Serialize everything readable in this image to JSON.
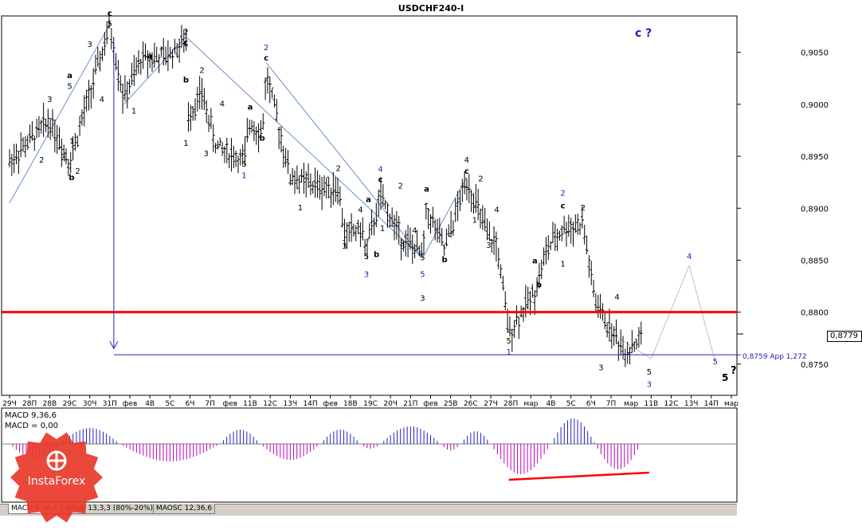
{
  "window": {
    "title": "USDCHF240-I"
  },
  "colors": {
    "bull": "#000000",
    "grid": "#c0c0c0",
    "support": "#ff0000",
    "target": "#2020c0",
    "macd": "#c000c0",
    "macd_pos": "#2020c0",
    "divergence": "#ff0000",
    "wave_blue": "#2020c0",
    "channel": "#6a8fd0"
  },
  "price_labels": {
    "current": "0,8779",
    "target": "0,8759 App 1,272"
  },
  "annotations": {
    "main_wave": "c ?",
    "wave_final": "5",
    "question": "?"
  },
  "indicator": {
    "line1": "MACD 9,36,6",
    "line2": "MACD = 0,00"
  },
  "tabs": [
    {
      "label": "MACD 9,36,6",
      "active": true
    },
    {
      "label": "Stoch 13,3,3 (80%-20%)",
      "active": false
    },
    {
      "label": "MAOSC 12,36,6",
      "active": false
    }
  ],
  "logo": {
    "name": "InstaForex",
    "icon": "instaforex-logo-icon"
  },
  "chart_data": {
    "type": "candlestick",
    "title": "USDCHF240-I",
    "ylim": [
      0.872,
      0.9085
    ],
    "y_ticks": [
      "0,9050",
      "0,9000",
      "0,8950",
      "0,8900",
      "0,8850",
      "0,8800",
      "0,8750"
    ],
    "y_tick_values": [
      0.905,
      0.9,
      0.895,
      0.89,
      0.885,
      0.88,
      0.875
    ],
    "x_tick_labels": [
      "29Ч",
      "28П",
      "28В",
      "29С",
      "30Ч",
      "31П",
      "фев",
      "4В",
      "5С",
      "6Ч",
      "7П",
      "фев",
      "11В",
      "12С",
      "13Ч",
      "14П",
      "фев",
      "18В",
      "19С",
      "20Ч",
      "21П",
      "фев",
      "25В",
      "26С",
      "27Ч",
      "28П",
      "мар",
      "4В",
      "5С",
      "6Ч",
      "7П",
      "мар",
      "11В",
      "12С",
      "13Ч",
      "14П",
      "мар"
    ],
    "support_level": 0.88,
    "target_level": 0.8759,
    "current_price": 0.8779,
    "wave_labels": [
      {
        "t": "c",
        "i": 5,
        "y": 0.9085,
        "c": "k"
      },
      {
        "t": "5",
        "i": 5,
        "y": 0.9075,
        "c": "k"
      },
      {
        "t": "3",
        "i": 2,
        "y": 0.9002,
        "c": "k"
      },
      {
        "t": "3",
        "i": 4,
        "y": 0.9055,
        "c": "k"
      },
      {
        "t": "a",
        "i": 3,
        "y": 0.9025,
        "c": "k"
      },
      {
        "t": "5",
        "i": 3,
        "y": 0.9015,
        "c": "k"
      },
      {
        "t": "4",
        "i": 4.6,
        "y": 0.9002,
        "c": "k"
      },
      {
        "t": "4",
        "i": 2.7,
        "y": 0.8945,
        "c": "k"
      },
      {
        "t": "2",
        "i": 1.6,
        "y": 0.8944,
        "c": "k"
      },
      {
        "t": "1",
        "i": 3.1,
        "y": 0.8962,
        "c": "k"
      },
      {
        "t": "2",
        "i": 3.4,
        "y": 0.8933,
        "c": "k"
      },
      {
        "t": "b",
        "i": 3.1,
        "y": 0.8927,
        "c": "k"
      },
      {
        "t": "a",
        "i": 7.0,
        "y": 0.9044,
        "c": "k"
      },
      {
        "t": "1",
        "i": 6.2,
        "y": 0.8991,
        "c": "k"
      },
      {
        "t": "2",
        "i": 8.8,
        "y": 0.9067,
        "c": "k"
      },
      {
        "t": "c",
        "i": 8.8,
        "y": 0.9057,
        "c": "k"
      },
      {
        "t": "b",
        "i": 8.8,
        "y": 0.9021,
        "c": "k"
      },
      {
        "t": "2",
        "i": 9.6,
        "y": 0.903,
        "c": "k"
      },
      {
        "t": "1",
        "i": 8.8,
        "y": 0.896,
        "c": "k"
      },
      {
        "t": "3",
        "i": 9.8,
        "y": 0.895,
        "c": "k"
      },
      {
        "t": "4",
        "i": 10.6,
        "y": 0.8998,
        "c": "k"
      },
      {
        "t": "5",
        "i": 11.7,
        "y": 0.894,
        "c": "k"
      },
      {
        "t": "1",
        "i": 11.7,
        "y": 0.8929,
        "c": "b"
      },
      {
        "t": "2",
        "i": 12.8,
        "y": 0.9052,
        "c": "b"
      },
      {
        "t": "c",
        "i": 12.8,
        "y": 0.9042,
        "c": "k"
      },
      {
        "t": "a",
        "i": 12.0,
        "y": 0.8995,
        "c": "k"
      },
      {
        "t": "b",
        "i": 12.6,
        "y": 0.8965,
        "c": "k"
      },
      {
        "t": "1",
        "i": 14.5,
        "y": 0.8898,
        "c": "k"
      },
      {
        "t": "2",
        "i": 16.4,
        "y": 0.8936,
        "c": "k"
      },
      {
        "t": "3",
        "i": 16.7,
        "y": 0.8861,
        "c": "k"
      },
      {
        "t": "4",
        "i": 17.5,
        "y": 0.8896,
        "c": "k"
      },
      {
        "t": "5",
        "i": 17.8,
        "y": 0.8851,
        "c": "k"
      },
      {
        "t": "3",
        "i": 17.8,
        "y": 0.8834,
        "c": "b"
      },
      {
        "t": "4",
        "i": 18.5,
        "y": 0.8935,
        "c": "b"
      },
      {
        "t": "c",
        "i": 18.5,
        "y": 0.8925,
        "c": "k"
      },
      {
        "t": "a",
        "i": 17.9,
        "y": 0.8906,
        "c": "k"
      },
      {
        "t": "b",
        "i": 18.3,
        "y": 0.8853,
        "c": "k"
      },
      {
        "t": "1",
        "i": 18.6,
        "y": 0.8878,
        "c": "k"
      },
      {
        "t": "2",
        "i": 19.5,
        "y": 0.8919,
        "c": "k"
      },
      {
        "t": "3",
        "i": 19.6,
        "y": 0.8861,
        "c": "k"
      },
      {
        "t": "4",
        "i": 20.2,
        "y": 0.8876,
        "c": "k"
      },
      {
        "t": "5",
        "i": 20.6,
        "y": 0.885,
        "c": "k"
      },
      {
        "t": "5",
        "i": 20.6,
        "y": 0.8834,
        "c": "b"
      },
      {
        "t": "3",
        "i": 20.6,
        "y": 0.8811,
        "c": "k"
      },
      {
        "t": "a",
        "i": 20.8,
        "y": 0.8916,
        "c": "k"
      },
      {
        "t": "b",
        "i": 21.7,
        "y": 0.8848,
        "c": "k"
      },
      {
        "t": "4",
        "i": 22.8,
        "y": 0.8944,
        "c": "k"
      },
      {
        "t": "c",
        "i": 22.8,
        "y": 0.8933,
        "c": "k"
      },
      {
        "t": "2",
        "i": 23.5,
        "y": 0.8926,
        "c": "k"
      },
      {
        "t": "1",
        "i": 23.2,
        "y": 0.8886,
        "c": "k"
      },
      {
        "t": "4",
        "i": 24.3,
        "y": 0.8896,
        "c": "k"
      },
      {
        "t": "3",
        "i": 23.9,
        "y": 0.8862,
        "c": "k"
      },
      {
        "t": "5",
        "i": 24.9,
        "y": 0.877,
        "c": "k"
      },
      {
        "t": "1",
        "i": 24.9,
        "y": 0.8759,
        "c": "b"
      },
      {
        "t": "a",
        "i": 26.2,
        "y": 0.8847,
        "c": "k"
      },
      {
        "t": "b",
        "i": 26.4,
        "y": 0.8824,
        "c": "k"
      },
      {
        "t": "2",
        "i": 27.6,
        "y": 0.8912,
        "c": "b"
      },
      {
        "t": "c",
        "i": 27.6,
        "y": 0.89,
        "c": "k"
      },
      {
        "t": "2",
        "i": 28.6,
        "y": 0.8898,
        "c": "k"
      },
      {
        "t": "1",
        "i": 27.6,
        "y": 0.8844,
        "c": "k"
      },
      {
        "t": "4",
        "i": 30.3,
        "y": 0.8812,
        "c": "k"
      },
      {
        "t": "3",
        "i": 29.5,
        "y": 0.8744,
        "c": "k"
      },
      {
        "t": "5",
        "i": 31.9,
        "y": 0.874,
        "c": "k"
      },
      {
        "t": "3",
        "i": 31.9,
        "y": 0.8728,
        "c": "b"
      },
      {
        "t": "4",
        "i": 33.9,
        "y": 0.8851,
        "c": "b"
      },
      {
        "t": "5",
        "i": 35.2,
        "y": 0.875,
        "c": "b"
      }
    ]
  }
}
